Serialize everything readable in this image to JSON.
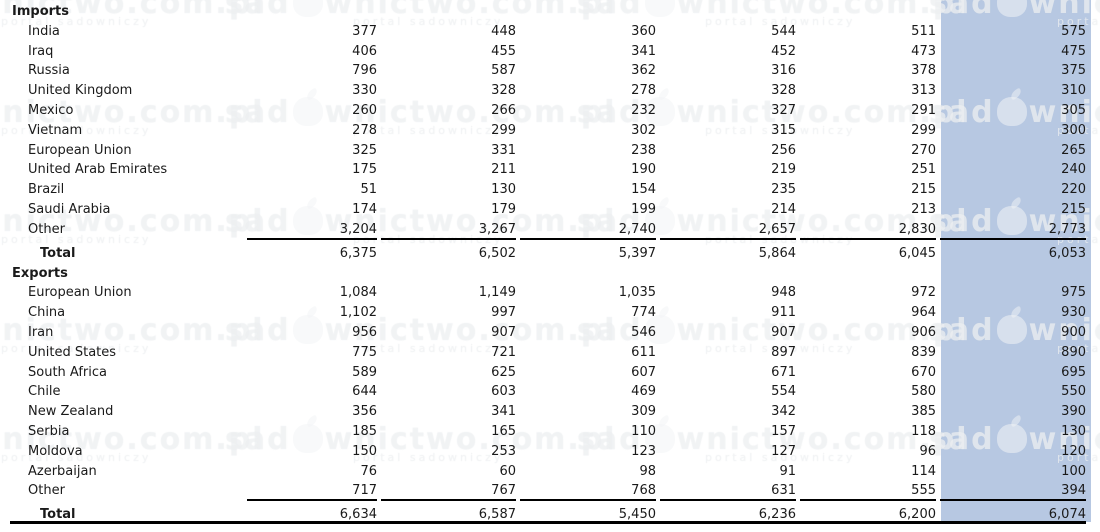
{
  "watermark": {
    "text_prefix": "sad",
    "text_suffix": "wnictwo.com.pl",
    "subtitle": "portal sadowniczy"
  },
  "highlight": {
    "column_color": "#b7c8e2"
  },
  "table": {
    "sections": [
      {
        "label": "Imports",
        "rows": [
          {
            "label": "India",
            "values": [
              "377",
              "448",
              "360",
              "544",
              "511",
              "575"
            ]
          },
          {
            "label": "Iraq",
            "values": [
              "406",
              "455",
              "341",
              "452",
              "473",
              "475"
            ]
          },
          {
            "label": "Russia",
            "values": [
              "796",
              "587",
              "362",
              "316",
              "378",
              "375"
            ]
          },
          {
            "label": "United Kingdom",
            "values": [
              "330",
              "328",
              "278",
              "328",
              "313",
              "310"
            ]
          },
          {
            "label": "Mexico",
            "values": [
              "260",
              "266",
              "232",
              "327",
              "291",
              "305"
            ]
          },
          {
            "label": "Vietnam",
            "values": [
              "278",
              "299",
              "302",
              "315",
              "299",
              "300"
            ]
          },
          {
            "label": "European Union",
            "values": [
              "325",
              "331",
              "238",
              "256",
              "270",
              "265"
            ]
          },
          {
            "label": "United Arab Emirates",
            "values": [
              "175",
              "211",
              "190",
              "219",
              "251",
              "240"
            ]
          },
          {
            "label": "Brazil",
            "values": [
              "51",
              "130",
              "154",
              "235",
              "215",
              "220"
            ]
          },
          {
            "label": "Saudi Arabia",
            "values": [
              "174",
              "179",
              "199",
              "214",
              "213",
              "215"
            ]
          },
          {
            "label": "Other",
            "values": [
              "3,204",
              "3,267",
              "2,740",
              "2,657",
              "2,830",
              "2,773"
            ]
          }
        ],
        "total": {
          "label": "Total",
          "values": [
            "6,375",
            "6,502",
            "5,397",
            "5,864",
            "6,045",
            "6,053"
          ]
        }
      },
      {
        "label": "Exports",
        "rows": [
          {
            "label": "European Union",
            "values": [
              "1,084",
              "1,149",
              "1,035",
              "948",
              "972",
              "975"
            ]
          },
          {
            "label": "China",
            "values": [
              "1,102",
              "997",
              "774",
              "911",
              "964",
              "930"
            ]
          },
          {
            "label": "Iran",
            "values": [
              "956",
              "907",
              "546",
              "907",
              "906",
              "900"
            ]
          },
          {
            "label": "United States",
            "values": [
              "775",
              "721",
              "611",
              "897",
              "839",
              "890"
            ]
          },
          {
            "label": "South Africa",
            "values": [
              "589",
              "625",
              "607",
              "671",
              "670",
              "695"
            ]
          },
          {
            "label": "Chile",
            "values": [
              "644",
              "603",
              "469",
              "554",
              "580",
              "550"
            ]
          },
          {
            "label": "New Zealand",
            "values": [
              "356",
              "341",
              "309",
              "342",
              "385",
              "390"
            ]
          },
          {
            "label": "Serbia",
            "values": [
              "185",
              "165",
              "110",
              "157",
              "118",
              "130"
            ]
          },
          {
            "label": "Moldova",
            "values": [
              "150",
              "253",
              "123",
              "127",
              "96",
              "120"
            ]
          },
          {
            "label": "Azerbaijan",
            "values": [
              "76",
              "60",
              "98",
              "91",
              "114",
              "100"
            ]
          },
          {
            "label": "Other",
            "values": [
              "717",
              "767",
              "768",
              "631",
              "555",
              "394"
            ]
          }
        ],
        "total": {
          "label": "Total",
          "values": [
            "6,634",
            "6,587",
            "5,450",
            "6,236",
            "6,200",
            "6,074"
          ]
        }
      }
    ]
  },
  "chart_data": {
    "type": "table",
    "title": "",
    "value_columns": 6,
    "column_headers_visible": false,
    "last_column_highlighted": true,
    "groups": [
      {
        "name": "Imports",
        "rows": [
          {
            "label": "India",
            "values": [
              377,
              448,
              360,
              544,
              511,
              575
            ]
          },
          {
            "label": "Iraq",
            "values": [
              406,
              455,
              341,
              452,
              473,
              475
            ]
          },
          {
            "label": "Russia",
            "values": [
              796,
              587,
              362,
              316,
              378,
              375
            ]
          },
          {
            "label": "United Kingdom",
            "values": [
              330,
              328,
              278,
              328,
              313,
              310
            ]
          },
          {
            "label": "Mexico",
            "values": [
              260,
              266,
              232,
              327,
              291,
              305
            ]
          },
          {
            "label": "Vietnam",
            "values": [
              278,
              299,
              302,
              315,
              299,
              300
            ]
          },
          {
            "label": "European Union",
            "values": [
              325,
              331,
              238,
              256,
              270,
              265
            ]
          },
          {
            "label": "United Arab Emirates",
            "values": [
              175,
              211,
              190,
              219,
              251,
              240
            ]
          },
          {
            "label": "Brazil",
            "values": [
              51,
              130,
              154,
              235,
              215,
              220
            ]
          },
          {
            "label": "Saudi Arabia",
            "values": [
              174,
              179,
              199,
              214,
              213,
              215
            ]
          },
          {
            "label": "Other",
            "values": [
              3204,
              3267,
              2740,
              2657,
              2830,
              2773
            ]
          }
        ],
        "total": [
          6375,
          6502,
          5397,
          5864,
          6045,
          6053
        ]
      },
      {
        "name": "Exports",
        "rows": [
          {
            "label": "European Union",
            "values": [
              1084,
              1149,
              1035,
              948,
              972,
              975
            ]
          },
          {
            "label": "China",
            "values": [
              1102,
              997,
              774,
              911,
              964,
              930
            ]
          },
          {
            "label": "Iran",
            "values": [
              956,
              907,
              546,
              907,
              906,
              900
            ]
          },
          {
            "label": "United States",
            "values": [
              775,
              721,
              611,
              897,
              839,
              890
            ]
          },
          {
            "label": "South Africa",
            "values": [
              589,
              625,
              607,
              671,
              670,
              695
            ]
          },
          {
            "label": "Chile",
            "values": [
              644,
              603,
              469,
              554,
              580,
              550
            ]
          },
          {
            "label": "New Zealand",
            "values": [
              356,
              341,
              309,
              342,
              385,
              390
            ]
          },
          {
            "label": "Serbia",
            "values": [
              185,
              165,
              110,
              157,
              118,
              130
            ]
          },
          {
            "label": "Moldova",
            "values": [
              150,
              253,
              123,
              127,
              96,
              120
            ]
          },
          {
            "label": "Azerbaijan",
            "values": [
              76,
              60,
              98,
              91,
              114,
              100
            ]
          },
          {
            "label": "Other",
            "values": [
              717,
              767,
              768,
              631,
              555,
              394
            ]
          }
        ],
        "total": [
          6634,
          6587,
          5450,
          6236,
          6200,
          6074
        ]
      }
    ]
  }
}
